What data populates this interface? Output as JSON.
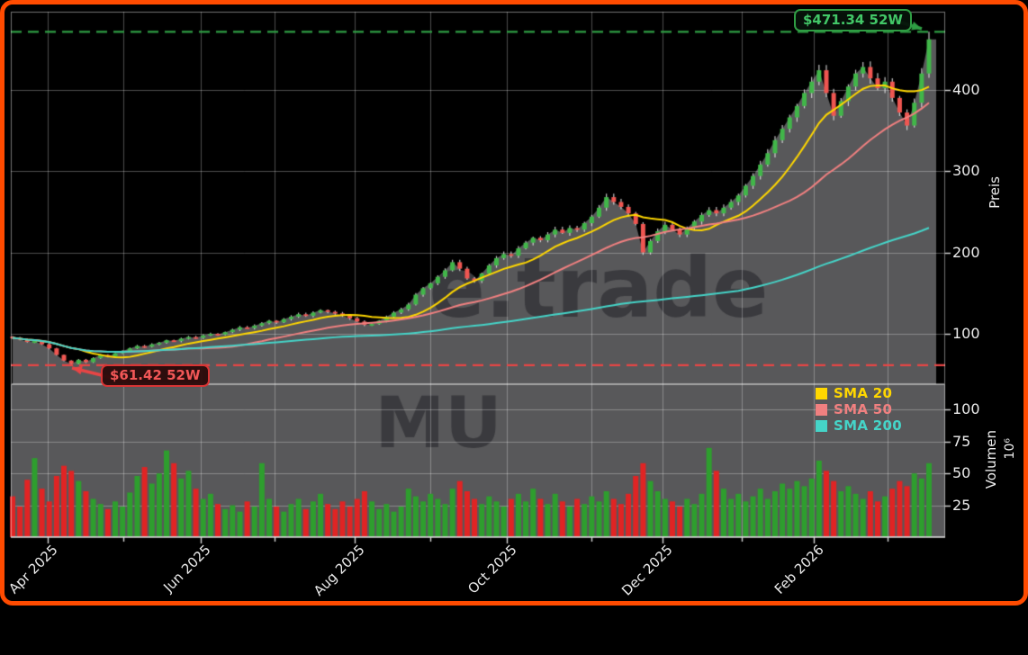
{
  "figure": {
    "border_color": "#ff4b00",
    "background": "#000000",
    "panel_gray": "#58585a",
    "grid_color": "rgba(255,255,255,0.30)",
    "tick_text_color": "#ececec"
  },
  "watermarks": {
    "main": "e.trade",
    "ticker": "MU",
    "color": "#3a3a3e"
  },
  "price_axis": {
    "title": "Preis",
    "ticks": [
      {
        "value": 100,
        "label": "100"
      },
      {
        "value": 200,
        "label": "200"
      },
      {
        "value": 300,
        "label": "300"
      },
      {
        "value": 400,
        "label": "400"
      }
    ]
  },
  "volume_axis": {
    "title": "Volumen",
    "scale_label": "10⁶",
    "ticks": [
      {
        "value": 25,
        "label": "25"
      },
      {
        "value": 50,
        "label": "50"
      },
      {
        "value": 75,
        "label": "75"
      },
      {
        "value": 100,
        "label": "100"
      }
    ]
  },
  "legend": [
    {
      "label": "SMA 20",
      "color": "#ffd700",
      "window_bars": 10
    },
    {
      "label": "SMA 50",
      "color": "#f08080",
      "window_bars": 25
    },
    {
      "label": "SMA 200",
      "color": "#45d4c8",
      "window_bars": 100
    }
  ],
  "annotations": {
    "high_52w": {
      "label": "$471.34 52W",
      "value": 471.34,
      "index": 125,
      "line_color": "#2f9e44",
      "text_color": "#42c767"
    },
    "low_52w": {
      "label": "$61.42 52W",
      "value": 61.42,
      "index": 8,
      "line_color": "#e84545",
      "text_color": "#f25757"
    }
  },
  "chart_data": {
    "type": "candlestick",
    "title": "",
    "x_range": [
      "Mar 2025",
      "Mar 2026"
    ],
    "bar_period": "approx. 2 trading days per bar",
    "price_ylim": [
      38,
      496
    ],
    "volume_ylim": [
      0,
      120
    ],
    "volume_unit": "millions of shares",
    "grid": true,
    "x_ticks": [
      {
        "label": "Apr 2025",
        "i": 4.8,
        "major": true
      },
      {
        "label": "",
        "i": 15.1,
        "major": false
      },
      {
        "label": "Jun 2025",
        "i": 25.7,
        "major": true
      },
      {
        "label": "",
        "i": 35.7,
        "major": false
      },
      {
        "label": "Aug 2025",
        "i": 46.6,
        "major": true
      },
      {
        "label": "",
        "i": 57.0,
        "major": false
      },
      {
        "label": "Oct 2025",
        "i": 67.4,
        "major": true
      },
      {
        "label": "",
        "i": 78.9,
        "major": false
      },
      {
        "label": "Dec 2025",
        "i": 88.6,
        "major": true
      },
      {
        "label": "",
        "i": 99.5,
        "major": false
      },
      {
        "label": "Feb 2026",
        "i": 109.3,
        "major": true
      },
      {
        "label": "",
        "i": 119.3,
        "major": false
      }
    ],
    "closes": [
      95,
      93,
      90,
      91,
      87,
      82,
      74,
      67,
      63,
      68,
      65,
      70,
      74,
      72,
      76,
      79,
      82,
      85,
      84,
      87,
      89,
      92,
      91,
      94,
      96,
      95,
      98,
      100,
      99,
      102,
      105,
      108,
      107,
      110,
      113,
      116,
      114,
      118,
      121,
      124,
      122,
      126,
      129,
      127,
      125,
      122,
      119,
      115,
      111,
      112,
      116,
      121,
      126,
      130,
      136,
      148,
      156,
      162,
      170,
      178,
      188,
      180,
      168,
      165,
      174,
      184,
      193,
      198,
      196,
      205,
      212,
      218,
      215,
      222,
      228,
      224,
      230,
      228,
      236,
      244,
      255,
      268,
      262,
      256,
      248,
      235,
      200,
      214,
      226,
      234,
      228,
      222,
      230,
      238,
      246,
      252,
      248,
      255,
      262,
      270,
      282,
      294,
      308,
      322,
      338,
      352,
      366,
      380,
      396,
      410,
      424,
      396,
      368,
      386,
      404,
      420,
      428,
      414,
      402,
      410,
      390,
      372,
      356,
      384,
      420,
      462
    ],
    "volumes": [
      32,
      24,
      45,
      62,
      38,
      28,
      48,
      56,
      52,
      44,
      36,
      30,
      26,
      22,
      28,
      24,
      35,
      48,
      55,
      42,
      50,
      68,
      58,
      46,
      52,
      38,
      30,
      34,
      26,
      22,
      25,
      20,
      28,
      24,
      58,
      30,
      24,
      20,
      26,
      30,
      22,
      28,
      34,
      26,
      22,
      28,
      24,
      30,
      36,
      28,
      22,
      26,
      20,
      24,
      38,
      32,
      28,
      34,
      30,
      26,
      38,
      44,
      36,
      30,
      26,
      32,
      28,
      24,
      30,
      34,
      28,
      38,
      30,
      26,
      34,
      28,
      24,
      30,
      26,
      32,
      28,
      36,
      30,
      26,
      34,
      48,
      58,
      44,
      36,
      30,
      28,
      24,
      30,
      26,
      34,
      70,
      52,
      38,
      30,
      34,
      28,
      32,
      38,
      30,
      36,
      42,
      38,
      44,
      40,
      46,
      60,
      52,
      44,
      36,
      40,
      34,
      30,
      36,
      28,
      32,
      38,
      44,
      40,
      50,
      46,
      58
    ],
    "sma_series": [
      {
        "label": "SMA 20",
        "color": "#ffd700"
      },
      {
        "label": "SMA 50",
        "color": "#f08080"
      },
      {
        "label": "SMA 200",
        "color": "#45d4c8"
      }
    ],
    "colors": {
      "candle_up": "#41b649",
      "candle_down": "#ef5651",
      "wick": "rgba(232,232,232,0.85)",
      "volume_up": "#2e9e2e",
      "volume_down": "#e02424",
      "area_fill": "#58585a"
    }
  }
}
